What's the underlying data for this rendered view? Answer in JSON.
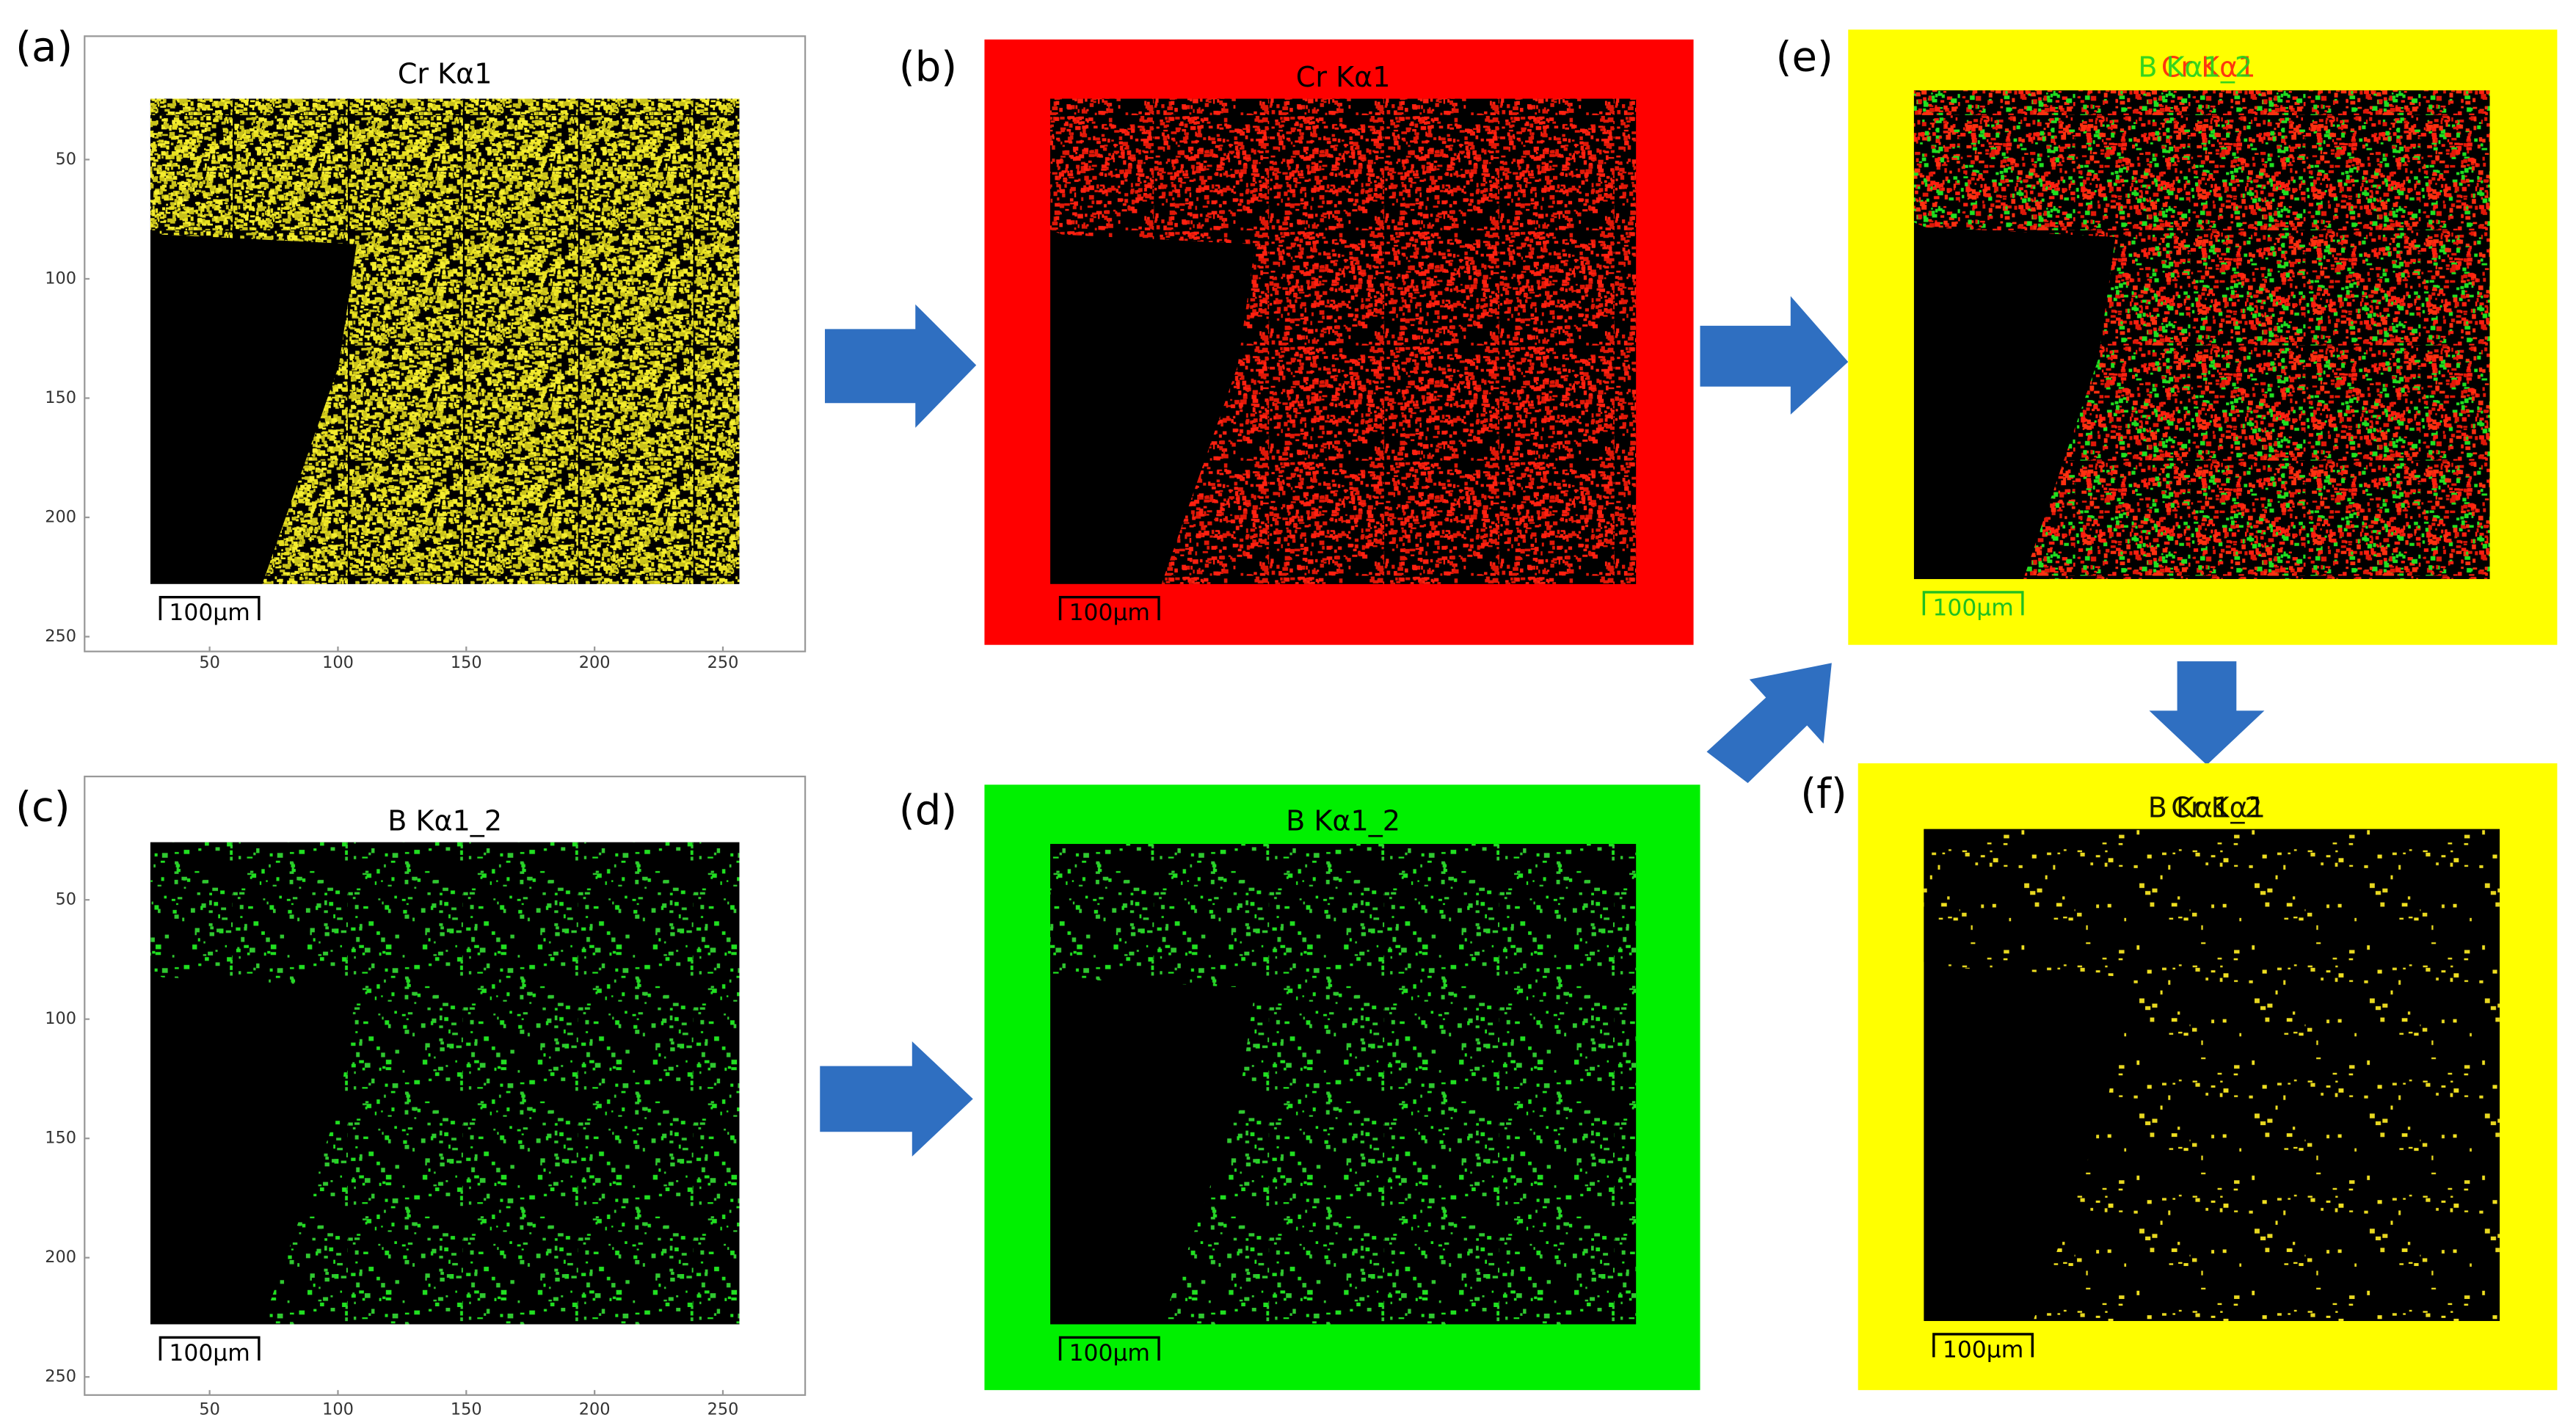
{
  "panels": [
    {
      "label": "(a)",
      "title": "Cr Kα1",
      "scale_bar": "100µm",
      "x_ticks": [
        50,
        100,
        150,
        200,
        250
      ],
      "y_ticks": [
        50,
        100,
        150,
        200,
        250
      ]
    },
    {
      "label": "(b)",
      "title": "Cr Kα1",
      "scale_bar": "100µm"
    },
    {
      "label": "(c)",
      "title": "B Kα1_2",
      "scale_bar": "100µm",
      "x_ticks": [
        50,
        100,
        150,
        200,
        250
      ],
      "y_ticks": [
        50,
        100,
        150,
        200,
        250
      ]
    },
    {
      "label": "(d)",
      "title": "B Kα1_2",
      "scale_bar": "100µm"
    },
    {
      "label": "(e)",
      "titles": [
        "Cr Kα1",
        "B Kα1_2"
      ],
      "scale_bar": "100µm"
    },
    {
      "label": "(f)",
      "titles": [
        "Cr Kα1",
        "B Kα1_2"
      ],
      "scale_bar": "100µm"
    }
  ]
}
